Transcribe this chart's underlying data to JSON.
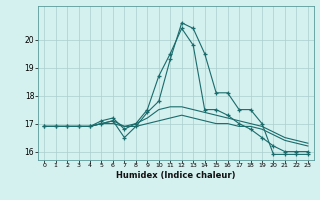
{
  "title": "",
  "xlabel": "Humidex (Indice chaleur)",
  "ylabel": "",
  "background_color": "#d4f0ef",
  "line_color": "#1a6b6b",
  "grid_color": "#aacfcf",
  "xlim": [
    -0.5,
    23.5
  ],
  "ylim": [
    15.7,
    21.2
  ],
  "yticks": [
    16,
    17,
    18,
    19,
    20
  ],
  "xticks": [
    0,
    1,
    2,
    3,
    4,
    5,
    6,
    7,
    8,
    9,
    10,
    11,
    12,
    13,
    14,
    15,
    16,
    17,
    18,
    19,
    20,
    21,
    22,
    23
  ],
  "series": [
    [
      16.9,
      16.9,
      16.9,
      16.9,
      16.9,
      17.0,
      17.1,
      16.5,
      16.9,
      17.4,
      17.8,
      19.3,
      20.6,
      20.4,
      19.5,
      18.1,
      18.1,
      17.5,
      17.5,
      17.0,
      15.9,
      15.9,
      15.9,
      15.9
    ],
    [
      16.9,
      16.9,
      16.9,
      16.9,
      16.9,
      17.1,
      17.2,
      16.8,
      17.0,
      17.5,
      18.7,
      19.5,
      20.4,
      19.8,
      17.5,
      17.5,
      17.3,
      17.0,
      16.8,
      16.5,
      16.2,
      16.0,
      16.0,
      16.0
    ],
    [
      16.9,
      16.9,
      16.9,
      16.9,
      16.9,
      17.0,
      17.1,
      16.9,
      17.0,
      17.2,
      17.5,
      17.6,
      17.6,
      17.5,
      17.4,
      17.3,
      17.2,
      17.1,
      17.0,
      16.9,
      16.7,
      16.5,
      16.4,
      16.3
    ],
    [
      16.9,
      16.9,
      16.9,
      16.9,
      16.9,
      17.0,
      17.0,
      16.9,
      16.9,
      17.0,
      17.1,
      17.2,
      17.3,
      17.2,
      17.1,
      17.0,
      17.0,
      16.9,
      16.9,
      16.8,
      16.6,
      16.4,
      16.3,
      16.2
    ]
  ]
}
